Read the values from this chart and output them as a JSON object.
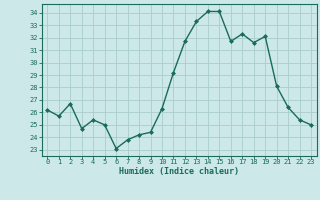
{
  "x": [
    0,
    1,
    2,
    3,
    4,
    5,
    6,
    7,
    8,
    9,
    10,
    11,
    12,
    13,
    14,
    15,
    16,
    17,
    18,
    19,
    20,
    21,
    22,
    23
  ],
  "y": [
    26.2,
    25.7,
    26.7,
    24.7,
    25.4,
    25.0,
    23.1,
    23.8,
    24.2,
    24.4,
    26.3,
    29.2,
    31.7,
    33.3,
    34.1,
    34.1,
    31.7,
    32.3,
    31.6,
    32.1,
    28.1,
    26.4,
    25.4,
    25.0
  ],
  "line_color": "#1a6b5a",
  "marker": "D",
  "marker_size": 2,
  "bg_color": "#cce8e8",
  "grid_color": "#aacccc",
  "xlabel": "Humidex (Indice chaleur)",
  "ylabel_ticks": [
    23,
    24,
    25,
    26,
    27,
    28,
    29,
    30,
    31,
    32,
    33,
    34
  ],
  "xlim": [
    -0.5,
    23.5
  ],
  "ylim": [
    22.5,
    34.7
  ],
  "tick_color": "#1a6b5a",
  "font_color": "#1a6b5a",
  "axis_color": "#1a6b5a",
  "tick_fontsize": 5.0,
  "xlabel_fontsize": 6.0
}
